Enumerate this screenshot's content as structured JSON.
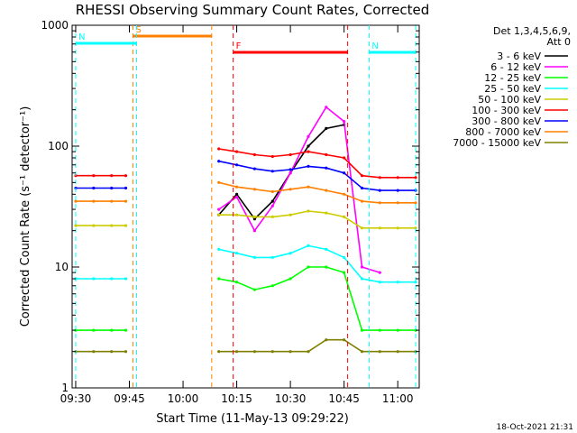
{
  "chart_data": {
    "type": "line",
    "title": "RHESSI Observing Summary Count Rates, Corrected",
    "xlabel": "Start Time (11-May-13 09:29:22)",
    "ylabel": "Corrected Count Rate (s⁻¹ detector⁻¹)",
    "x_ticks": [
      "09:30",
      "09:45",
      "10:00",
      "10:15",
      "10:30",
      "10:45",
      "11:00"
    ],
    "y_ticks": [
      "1",
      "10",
      "100",
      "1000"
    ],
    "y_scale": "log",
    "ylim": [
      1,
      1000
    ],
    "xlim": [
      "09:29",
      "11:06"
    ],
    "legend_title": [
      "Det 1,3,4,5,6,9,",
      "Att 0"
    ],
    "legend_position": "right",
    "footer": "18-Oct-2021 21:31",
    "flags": [
      {
        "label": "S",
        "color": "#ff8000",
        "start": "09:46",
        "end": "10:08"
      },
      {
        "label": "N",
        "color": "#00ffff",
        "start": "09:30",
        "end": "09:47"
      },
      {
        "label": "N",
        "color": "#00ffff",
        "start": "10:52",
        "end": "11:05"
      },
      {
        "label": "F",
        "color": "#ff0000",
        "start": "10:14",
        "end": "10:46"
      }
    ],
    "x": [
      "09:30",
      "09:35",
      "09:40",
      "09:44",
      "10:10",
      "10:15",
      "10:20",
      "10:25",
      "10:30",
      "10:35",
      "10:40",
      "10:45",
      "10:50",
      "10:55",
      "11:00",
      "11:05"
    ],
    "series": [
      {
        "name": "3 - 6 keV",
        "color": "#000000",
        "values": [
          null,
          null,
          null,
          null,
          27,
          40,
          25,
          35,
          60,
          100,
          140,
          150,
          null,
          null,
          null,
          null
        ]
      },
      {
        "name": "6 - 12 keV",
        "color": "#ff00ff",
        "values": [
          null,
          null,
          null,
          null,
          30,
          38,
          20,
          32,
          60,
          120,
          210,
          160,
          10,
          9,
          null,
          null
        ]
      },
      {
        "name": "12 - 25 keV",
        "color": "#00ff00",
        "values": [
          3,
          3,
          3,
          3,
          8,
          7.5,
          6.5,
          7,
          8,
          10,
          10,
          9,
          3,
          3,
          3,
          3
        ]
      },
      {
        "name": "25 - 50 keV",
        "color": "#00ffff",
        "values": [
          8,
          8,
          8,
          8,
          14,
          13,
          12,
          12,
          13,
          15,
          14,
          12,
          8,
          7.5,
          7.5,
          7.5
        ]
      },
      {
        "name": "50 - 100 keV",
        "color": "#cccc00",
        "values": [
          22,
          22,
          22,
          22,
          27,
          27,
          26,
          26,
          27,
          29,
          28,
          26,
          21,
          21,
          21,
          21
        ]
      },
      {
        "name": "100 - 300 keV",
        "color": "#ff0000",
        "values": [
          57,
          57,
          57,
          57,
          95,
          90,
          85,
          82,
          85,
          90,
          85,
          80,
          57,
          55,
          55,
          55
        ]
      },
      {
        "name": "300 - 800 keV",
        "color": "#0000ff",
        "values": [
          45,
          45,
          45,
          45,
          75,
          70,
          65,
          62,
          64,
          68,
          66,
          60,
          45,
          43,
          43,
          43
        ]
      },
      {
        "name": "800 - 7000 keV",
        "color": "#ff8000",
        "values": [
          35,
          35,
          35,
          35,
          50,
          46,
          44,
          42,
          44,
          46,
          43,
          40,
          35,
          34,
          34,
          34
        ]
      },
      {
        "name": "7000 - 15000 keV",
        "color": "#808000",
        "values": [
          2,
          2,
          2,
          2,
          2,
          2,
          2,
          2,
          2,
          2,
          2.5,
          2.5,
          2,
          2,
          2,
          2
        ]
      }
    ]
  }
}
